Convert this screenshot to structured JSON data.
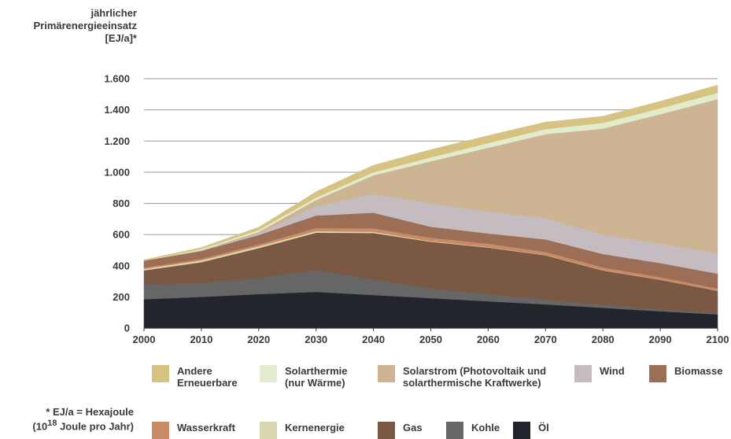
{
  "chart_data": {
    "type": "area",
    "stacked": true,
    "ylabel_lines": [
      "jährlicher",
      "Primärenergieeinsatz",
      "[EJ/a]*"
    ],
    "x": [
      2000,
      2010,
      2020,
      2030,
      2040,
      2050,
      2060,
      2070,
      2080,
      2090,
      2100
    ],
    "xticks": [
      "2000",
      "2010",
      "2020",
      "2030",
      "2040",
      "2050",
      "2060",
      "2070",
      "2080",
      "2090",
      "2100"
    ],
    "ylim": [
      0,
      1600
    ],
    "yticks": [
      0,
      200,
      400,
      600,
      800,
      1000,
      1200,
      1400,
      1600
    ],
    "ytick_labels": [
      "0",
      "200",
      "400",
      "600",
      "800",
      "1.000",
      "1.200",
      "1.400",
      "1.600"
    ],
    "grid": true,
    "series": [
      {
        "name": "Öl",
        "color": "#22252b",
        "values": [
          185,
          200,
          218,
          232,
          212,
          192,
          172,
          152,
          130,
          108,
          88
        ]
      },
      {
        "name": "Kohle",
        "color": "#666666",
        "values": [
          95,
          88,
          105,
          140,
          100,
          62,
          45,
          30,
          20,
          12,
          6
        ]
      },
      {
        "name": "Gas",
        "color": "#7b5843",
        "values": [
          90,
          135,
          190,
          240,
          298,
          300,
          300,
          285,
          220,
          190,
          145
        ]
      },
      {
        "name": "Kernenergie",
        "color": "#d9d6b0",
        "values": [
          10,
          12,
          12,
          10,
          8,
          4,
          3,
          2,
          2,
          1,
          1
        ]
      },
      {
        "name": "Wasserkraft",
        "color": "#c98a66",
        "values": [
          8,
          10,
          12,
          20,
          22,
          22,
          22,
          20,
          18,
          16,
          14
        ]
      },
      {
        "name": "Biomasse",
        "color": "#9b6e55",
        "values": [
          45,
          50,
          60,
          80,
          100,
          70,
          65,
          80,
          85,
          90,
          95
        ]
      },
      {
        "name": "Wind",
        "color": "#c4bcc0",
        "values": [
          0,
          2,
          10,
          60,
          120,
          150,
          140,
          135,
          125,
          125,
          130
        ]
      },
      {
        "name": "Solarstrom (Photovoltaik und solarthermische Kraftwerke)",
        "color": "#cdb594",
        "values": [
          0,
          2,
          10,
          40,
          120,
          270,
          410,
          540,
          680,
          830,
          990
        ]
      },
      {
        "name": "Solarthermie (nur Wärme)",
        "color": "#e2ebcc",
        "values": [
          0,
          8,
          12,
          15,
          20,
          25,
          30,
          33,
          36,
          38,
          40
        ]
      },
      {
        "name": "Andere Erneuerbare",
        "color": "#d6c382",
        "values": [
          5,
          10,
          18,
          38,
          45,
          50,
          48,
          45,
          43,
          45,
          50
        ]
      }
    ],
    "legend_rows": [
      [
        {
          "label": "Andere\nErneuerbare",
          "color": "#d6c382"
        },
        {
          "label": "Solarthermie\n(nur Wärme)",
          "color": "#e2ebcc"
        },
        {
          "label": "Solarstrom (Photovoltaik und\nsolarthermische Kraftwerke)",
          "color": "#cdb594"
        },
        {
          "label": "Wind",
          "color": "#c4bcc0"
        },
        {
          "label": "Biomasse",
          "color": "#9b6e55"
        }
      ],
      [
        {
          "label": "Wasserkraft",
          "color": "#c98a66"
        },
        {
          "label": "Kernenergie",
          "color": "#d9d6b0"
        },
        {
          "label": "Gas",
          "color": "#7b5843"
        },
        {
          "label": "Kohle",
          "color": "#666666"
        },
        {
          "label": "Öl",
          "color": "#22252b"
        }
      ]
    ],
    "legend_position": "bottom"
  },
  "footnote": {
    "line1": "* EJ/a = Hexajoule",
    "line2_prefix": "(10",
    "line2_sup": "18",
    "line2_suffix": " Joule pro Jahr)"
  },
  "colors": {
    "text": "#3a3a3a",
    "grid": "#9a9a9a",
    "axis": "#333333"
  }
}
